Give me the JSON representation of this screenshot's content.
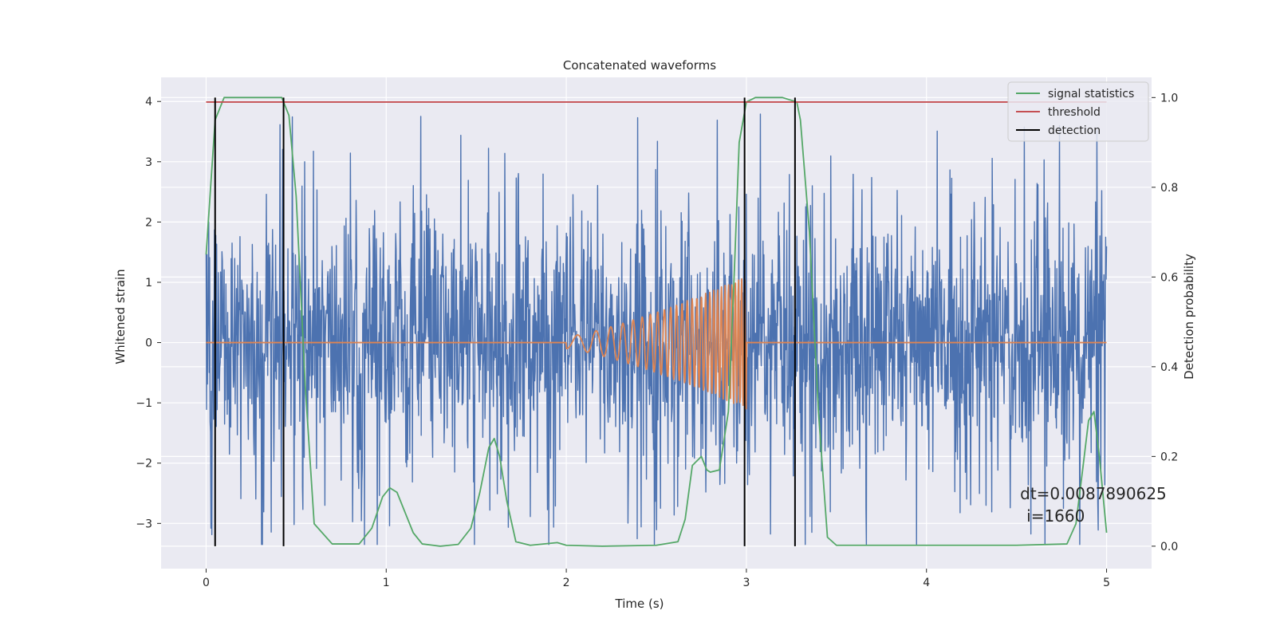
{
  "chart_data": {
    "type": "line",
    "title": "Concatenated waveforms",
    "xlabel": "Time (s)",
    "ylabel": "Whitened strain",
    "y2label": "Detection probability",
    "xlim": [
      -0.25,
      5.25
    ],
    "ylim": [
      -3.75,
      4.4
    ],
    "y2lim": [
      -0.05,
      1.045
    ],
    "xticks": [
      0,
      1,
      2,
      3,
      4,
      5
    ],
    "xtick_labels": [
      "0",
      "1",
      "2",
      "3",
      "4",
      "5"
    ],
    "yticks": [
      -3,
      -2,
      -1,
      0,
      1,
      2,
      3,
      4
    ],
    "ytick_labels": [
      "−3",
      "−2",
      "−1",
      "0",
      "1",
      "2",
      "3",
      "4"
    ],
    "y2ticks": [
      0.0,
      0.2,
      0.4,
      0.6,
      0.8,
      1.0
    ],
    "y2tick_labels": [
      "0.0",
      "0.2",
      "0.4",
      "0.6",
      "0.8",
      "1.0"
    ],
    "grid": true,
    "legend_position": "top-right",
    "legend": [
      {
        "label": "signal statistics",
        "color": "#55a868"
      },
      {
        "label": "threshold",
        "color": "#c44e52"
      },
      {
        "label": "detection",
        "color": "#000000"
      }
    ],
    "series": [
      {
        "name": "strain",
        "axis": "left",
        "color": "#4c72b0",
        "kind": "noise",
        "x_range": [
          0,
          5
        ],
        "n_samples": 2048,
        "envelope": {
          "core": [
            -1.1,
            1.1
          ],
          "max": 4.05,
          "min": -3.35
        }
      },
      {
        "name": "injected signal",
        "axis": "left",
        "color": "#dd8452",
        "kind": "chirp",
        "x_range": [
          0,
          5
        ],
        "chirp_window": [
          2.0,
          3.0
        ],
        "amplitude_start": 0.1,
        "amplitude_end": 1.1,
        "frequency_start_hz": 8,
        "frequency_end_hz": 60
      },
      {
        "name": "signal statistics",
        "axis": "right",
        "color": "#55a868",
        "x": [
          0.0,
          0.02,
          0.05,
          0.1,
          0.15,
          0.25,
          0.35,
          0.42,
          0.46,
          0.5,
          0.55,
          0.6,
          0.7,
          0.85,
          0.92,
          0.98,
          1.02,
          1.06,
          1.1,
          1.15,
          1.2,
          1.3,
          1.4,
          1.47,
          1.52,
          1.57,
          1.6,
          1.63,
          1.67,
          1.72,
          1.8,
          1.9,
          1.95,
          2.0,
          2.2,
          2.5,
          2.62,
          2.66,
          2.7,
          2.75,
          2.78,
          2.8,
          2.85,
          2.9,
          2.93,
          2.96,
          3.0,
          3.05,
          3.1,
          3.2,
          3.28,
          3.3,
          3.35,
          3.4,
          3.45,
          3.5,
          3.7,
          4.0,
          4.5,
          4.78,
          4.83,
          4.87,
          4.9,
          4.93,
          4.96,
          5.0
        ],
        "y": [
          0.65,
          0.77,
          0.95,
          1.0,
          1.0,
          1.0,
          1.0,
          1.0,
          0.96,
          0.78,
          0.36,
          0.05,
          0.005,
          0.005,
          0.04,
          0.11,
          0.13,
          0.12,
          0.08,
          0.03,
          0.005,
          0.0,
          0.004,
          0.04,
          0.12,
          0.22,
          0.24,
          0.2,
          0.1,
          0.01,
          0.002,
          0.006,
          0.008,
          0.002,
          0.0,
          0.002,
          0.01,
          0.06,
          0.18,
          0.2,
          0.17,
          0.165,
          0.17,
          0.3,
          0.58,
          0.9,
          0.99,
          1.0,
          1.0,
          1.0,
          0.99,
          0.95,
          0.7,
          0.3,
          0.02,
          0.002,
          0.002,
          0.002,
          0.002,
          0.005,
          0.05,
          0.18,
          0.28,
          0.3,
          0.2,
          0.03
        ]
      },
      {
        "name": "threshold",
        "axis": "right",
        "color": "#c44e52",
        "x": [
          0,
          5
        ],
        "y": [
          0.99,
          0.99
        ]
      },
      {
        "name": "detection",
        "axis": "right",
        "color": "#000000",
        "kind": "vlines",
        "x": [
          0.05,
          0.43,
          2.99,
          3.27
        ],
        "y_range": [
          0.0,
          1.0
        ]
      }
    ],
    "annotations": [
      {
        "lines": [
          "dt=0.0087890625",
          "i=1660"
        ],
        "x": 4.52,
        "y": -2.6
      }
    ]
  }
}
